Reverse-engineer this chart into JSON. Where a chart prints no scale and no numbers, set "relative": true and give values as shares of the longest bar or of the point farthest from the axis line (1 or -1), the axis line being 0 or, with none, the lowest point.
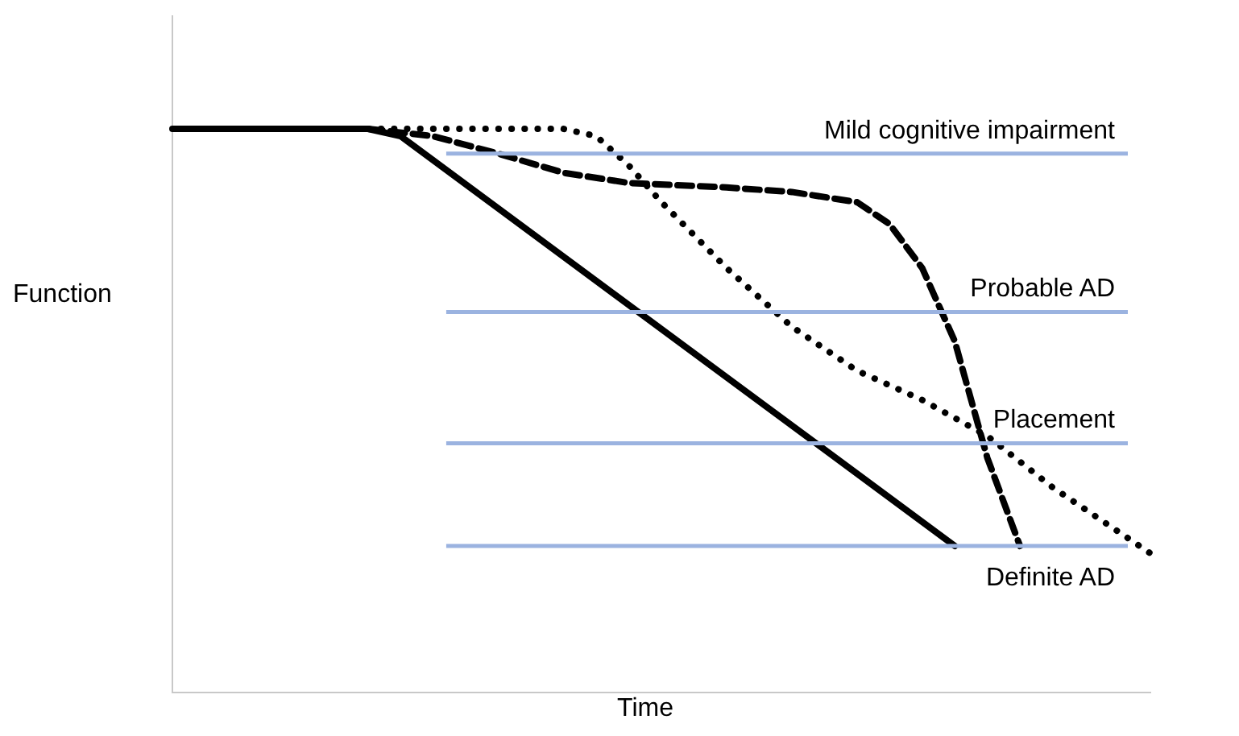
{
  "chart_data": {
    "type": "line",
    "relative": true,
    "xlabel": "Time",
    "ylabel": "Function",
    "categories": [
      null,
      null,
      null,
      null,
      null,
      null,
      null,
      null,
      null,
      null,
      null,
      null,
      null,
      null,
      null,
      null,
      null,
      null,
      null,
      null,
      null,
      null,
      null,
      null,
      null,
      null,
      null,
      null,
      null,
      null,
      null
    ],
    "series": [
      {
        "color": "#000000",
        "line_style": "solid",
        "values": [
          1.0,
          null,
          null,
          null,
          null,
          null,
          1.0,
          0.987,
          null,
          null,
          null,
          null,
          null,
          null,
          null,
          null,
          null,
          null,
          null,
          null,
          null,
          null,
          null,
          null,
          0.26,
          null,
          null,
          null,
          null,
          null,
          null
        ]
      },
      {
        "color": "#000000",
        "line_style": "dashed",
        "values": [
          null,
          null,
          null,
          null,
          null,
          null,
          1.0,
          null,
          0.987,
          null,
          0.956,
          null,
          0.922,
          null,
          0.904,
          null,
          null,
          0.896,
          null,
          0.888,
          null,
          0.87,
          0.831,
          0.753,
          0.623,
          0.416,
          0.26,
          null,
          null,
          null,
          null
        ]
      },
      {
        "color": "#000000",
        "line_style": "dotted",
        "values": [
          null,
          null,
          null,
          null,
          null,
          null,
          1.0,
          null,
          1.0,
          null,
          null,
          null,
          1.0,
          0.987,
          0.935,
          0.87,
          null,
          0.753,
          null,
          0.649,
          null,
          0.571,
          null,
          0.519,
          null,
          0.455,
          null,
          0.364,
          null,
          0.286,
          0.247
        ]
      }
    ],
    "ref_lines": [
      {
        "axis": "y",
        "value": 0.956,
        "label": "Mild cognitive impairment",
        "color": "#9bb3e0"
      },
      {
        "axis": "y",
        "value": 0.675,
        "label": "Probable AD",
        "color": "#9bb3e0"
      },
      {
        "axis": "y",
        "value": 0.442,
        "label": "Placement",
        "color": "#9bb3e0"
      },
      {
        "axis": "y",
        "value": 0.26,
        "label": "Definite AD",
        "color": "#9bb3e0"
      }
    ],
    "grid": false,
    "legend": false,
    "tick_labels": false,
    "marker": "none"
  }
}
